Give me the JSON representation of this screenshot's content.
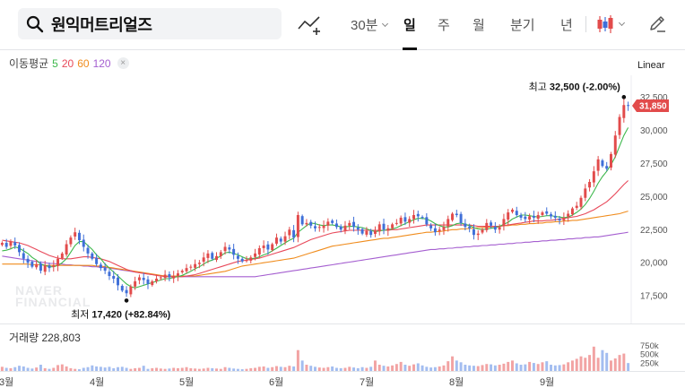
{
  "toolbar": {
    "search_text": "원익머트리얼즈",
    "periods": {
      "minute": "30분",
      "day": "일",
      "week": "주",
      "month": "월",
      "quarter": "분기",
      "year": "년"
    },
    "active_period": "일"
  },
  "legend": {
    "title": "이동평균",
    "ma5": "5",
    "ma20": "20",
    "ma60": "60",
    "ma120": "120",
    "close": "×"
  },
  "scale_label": "Linear",
  "watermark": [
    "NAVER",
    "FINANCIAL"
  ],
  "annotations": {
    "high": {
      "label": "최고",
      "value": "32,500 (-2.00%)"
    },
    "low": {
      "label": "최저",
      "value": "17,420 (+82.84%)"
    },
    "current_price": "31,850"
  },
  "volume": {
    "label": "거래량 228,803",
    "ticks": [
      "750k",
      "500k",
      "250k"
    ]
  },
  "colors": {
    "up": "#e24b4b",
    "down": "#3f6fd8",
    "ma5": "#3db84c",
    "ma20": "#e8495a",
    "ma60": "#f08c1d",
    "ma120": "#a55fd0",
    "price_tag": "#e24b4b"
  },
  "chart_data": {
    "type": "candlestick",
    "y_ticks": [
      "32,500",
      "30,000",
      "27,500",
      "25,000",
      "22,500",
      "20,000",
      "17,500"
    ],
    "ylim": [
      16500,
      33200
    ],
    "x_labels": [
      "3월",
      "4월",
      "5월",
      "6월",
      "7월",
      "8월",
      "9월"
    ],
    "x_label_days": [
      1,
      22,
      43,
      64,
      85,
      106,
      127
    ],
    "days": 147,
    "close": [
      21500,
      21200,
      21600,
      21300,
      20800,
      20300,
      20000,
      19700,
      19900,
      19400,
      19800,
      19600,
      19800,
      20300,
      20700,
      21400,
      21900,
      22300,
      21700,
      21200,
      20700,
      20300,
      19900,
      19600,
      19400,
      19000,
      18800,
      18300,
      17900,
      17700,
      18200,
      18600,
      18900,
      18700,
      18400,
      18600,
      18800,
      18900,
      19100,
      18900,
      19000,
      19200,
      19400,
      19600,
      19700,
      19900,
      20000,
      20400,
      20700,
      20300,
      20500,
      20800,
      21200,
      21000,
      20600,
      20300,
      20100,
      20200,
      20400,
      20700,
      21100,
      21300,
      21000,
      21400,
      21900,
      21600,
      22000,
      22500,
      21900,
      23600,
      22900,
      23000,
      22800,
      22600,
      22700,
      22800,
      23100,
      23000,
      22700,
      22500,
      22800,
      23000,
      22700,
      22500,
      22200,
      22400,
      22100,
      22400,
      22900,
      22500,
      22600,
      22900,
      23000,
      23400,
      23100,
      23300,
      23600,
      23500,
      23400,
      22900,
      22600,
      22300,
      22500,
      22700,
      23300,
      23700,
      23600,
      23000,
      22700,
      22600,
      22100,
      22200,
      22500,
      23000,
      22800,
      22500,
      22700,
      23300,
      23800,
      24000,
      23600,
      23400,
      23300,
      23500,
      23400,
      23600,
      23800,
      23700,
      23500,
      23400,
      23200,
      23400,
      23700,
      24100,
      24300,
      24900,
      25600,
      26100,
      26900,
      27800,
      27300,
      27100,
      28200,
      29600,
      31000,
      31900,
      31850
    ],
    "ma5": [
      20900,
      20950,
      21050,
      21200,
      21100,
      20900,
      20700,
      20400,
      20200,
      19900,
      19800,
      19700,
      19700,
      19800,
      20000,
      20300,
      20800,
      21300,
      21600,
      21600,
      21300,
      21000,
      20600,
      20300,
      19900,
      19600,
      19300,
      19000,
      18700,
      18400,
      18200,
      18100,
      18200,
      18300,
      18400,
      18500,
      18600,
      18700,
      18800,
      18800,
      18900,
      18950,
      19050,
      19200,
      19350,
      19550,
      19700,
      19900,
      20100,
      20200,
      20350,
      20500,
      20750,
      20800,
      20700,
      20600,
      20450,
      20300,
      20300,
      20350,
      20450,
      20600,
      20700,
      20900,
      21100,
      21300,
      21500,
      21700,
      21850,
      22300,
      22550,
      22800,
      23000,
      22950,
      22850,
      22800,
      22850,
      22850,
      22800,
      22700,
      22700,
      22750,
      22750,
      22700,
      22650,
      22550,
      22450,
      22350,
      22400,
      22450,
      22500,
      22550,
      22650,
      22800,
      22950,
      23100,
      23250,
      23350,
      23350,
      23300,
      23150,
      22950,
      22800,
      22700,
      22700,
      22800,
      22950,
      23000,
      22900,
      22800,
      22650,
      22550,
      22500,
      22550,
      22600,
      22650,
      22750,
      22900,
      23050,
      23300,
      23450,
      23600,
      23600,
      23550,
      23500,
      23450,
      23500,
      23550,
      23550,
      23500,
      23450,
      23400,
      23450,
      23600,
      23800,
      24050,
      24400,
      24850,
      25400,
      26000,
      26500,
      26900,
      27400,
      28000,
      28800,
      29600,
      30200
    ],
    "ma20": [
      21700,
      21650,
      21600,
      21550,
      21500,
      21400,
      21300,
      21150,
      21000,
      20850,
      20700,
      20550,
      20450,
      20350,
      20300,
      20300,
      20300,
      20350,
      20400,
      20450,
      20450,
      20400,
      20350,
      20300,
      20200,
      20100,
      19950,
      19800,
      19650,
      19500,
      19400,
      19300,
      19250,
      19200,
      19150,
      19100,
      19050,
      19000,
      18950,
      18950,
      18950,
      18950,
      18950,
      19000,
      19050,
      19100,
      19200,
      19300,
      19400,
      19500,
      19600,
      19700,
      19800,
      19900,
      20000,
      20100,
      20150,
      20200,
      20250,
      20300,
      20350,
      20450,
      20550,
      20650,
      20750,
      20850,
      20950,
      21050,
      21150,
      21300,
      21450,
      21600,
      21750,
      21850,
      21950,
      22050,
      22150,
      22250,
      22300,
      22350,
      22400,
      22450,
      22450,
      22450,
      22450,
      22450,
      22450,
      22450,
      22450,
      22450,
      22450,
      22500,
      22500,
      22550,
      22600,
      22650,
      22700,
      22750,
      22800,
      22850,
      22850,
      22850,
      22850,
      22850,
      22850,
      22850,
      22850,
      22850,
      22850,
      22850,
      22800,
      22750,
      22750,
      22750,
      22750,
      22750,
      22750,
      22800,
      22850,
      22900,
      22950,
      23000,
      23050,
      23100,
      23150,
      23150,
      23150,
      23200,
      23200,
      23250,
      23300,
      23350,
      23400,
      23450,
      23500,
      23600,
      23700,
      23850,
      24000,
      24200,
      24400,
      24600,
      24900,
      25200,
      25550,
      25900,
      26200
    ],
    "ma60": [
      19900,
      19900,
      19900,
      19900,
      19900,
      19900,
      19900,
      19850,
      19850,
      19850,
      19800,
      19800,
      19800,
      19800,
      19800,
      19800,
      19800,
      19800,
      19800,
      19800,
      19800,
      19800,
      19750,
      19750,
      19700,
      19650,
      19600,
      19550,
      19500,
      19450,
      19400,
      19350,
      19300,
      19250,
      19200,
      19150,
      19100,
      19050,
      19000,
      19000,
      19000,
      19000,
      19000,
      19000,
      19000,
      19000,
      19050,
      19100,
      19150,
      19200,
      19250,
      19300,
      19350,
      19450,
      19550,
      19650,
      19750,
      19800,
      19850,
      19900,
      19950,
      20000,
      20050,
      20100,
      20150,
      20200,
      20250,
      20300,
      20350,
      20450,
      20550,
      20650,
      20750,
      20850,
      20950,
      21050,
      21150,
      21250,
      21300,
      21350,
      21400,
      21450,
      21500,
      21550,
      21600,
      21650,
      21700,
      21750,
      21800,
      21850,
      21850,
      21900,
      21950,
      22000,
      22050,
      22100,
      22150,
      22200,
      22250,
      22300,
      22300,
      22350,
      22350,
      22400,
      22450,
      22500,
      22500,
      22550,
      22550,
      22600,
      22600,
      22650,
      22650,
      22700,
      22700,
      22750,
      22750,
      22800,
      22800,
      22850,
      22850,
      22900,
      22900,
      22950,
      22950,
      23000,
      23000,
      23050,
      23050,
      23100,
      23100,
      23150,
      23150,
      23200,
      23200,
      23250,
      23300,
      23350,
      23400,
      23450,
      23500,
      23550,
      23600,
      23650,
      23700,
      23800,
      23900
    ],
    "ma120": [
      20500,
      20450,
      20400,
      20350,
      20300,
      20250,
      20200,
      20150,
      20100,
      20050,
      20000,
      19950,
      19950,
      19900,
      19900,
      19850,
      19850,
      19800,
      19800,
      19750,
      19750,
      19700,
      19700,
      19650,
      19650,
      19600,
      19550,
      19500,
      19450,
      19400,
      19350,
      19300,
      19250,
      19200,
      19150,
      19100,
      19050,
      19000,
      19000,
      18950,
      18950,
      18950,
      18950,
      18950,
      18950,
      18950,
      18950,
      18950,
      18950,
      18950,
      18950,
      18950,
      18950,
      18950,
      18950,
      18950,
      18950,
      18950,
      18950,
      18950,
      19000,
      19050,
      19100,
      19150,
      19200,
      19250,
      19300,
      19350,
      19400,
      19450,
      19500,
      19550,
      19600,
      19650,
      19700,
      19750,
      19800,
      19850,
      19900,
      19950,
      20000,
      20050,
      20100,
      20150,
      20200,
      20250,
      20300,
      20350,
      20400,
      20450,
      20500,
      20550,
      20600,
      20650,
      20700,
      20750,
      20800,
      20850,
      20900,
      20950,
      21000,
      21000,
      21050,
      21050,
      21100,
      21100,
      21150,
      21150,
      21200,
      21200,
      21250,
      21250,
      21300,
      21300,
      21350,
      21350,
      21400,
      21400,
      21450,
      21450,
      21500,
      21500,
      21550,
      21550,
      21600,
      21600,
      21650,
      21650,
      21700,
      21700,
      21750,
      21750,
      21800,
      21800,
      21850,
      21850,
      21900,
      21900,
      21950,
      21950,
      22000,
      22050,
      22100,
      22150,
      22200,
      22250,
      22300
    ],
    "volume": [
      120,
      90,
      80,
      110,
      150,
      130,
      90,
      70,
      100,
      180,
      80,
      60,
      90,
      170,
      190,
      130,
      80,
      60,
      50,
      90,
      110,
      160,
      130,
      120,
      100,
      120,
      80,
      110,
      120,
      90,
      60,
      80,
      90,
      150,
      60,
      80,
      90,
      70,
      60,
      70,
      90,
      80,
      90,
      110,
      80,
      70,
      60,
      70,
      90,
      80,
      70,
      60,
      110,
      90,
      70,
      60,
      50,
      60,
      80,
      90,
      120,
      130,
      90,
      110,
      140,
      120,
      110,
      150,
      130,
      600,
      300,
      180,
      150,
      120,
      100,
      90,
      110,
      130,
      90,
      80,
      90,
      120,
      100,
      80,
      110,
      90,
      120,
      300,
      180,
      150,
      130,
      160,
      200,
      260,
      180,
      150,
      190,
      220,
      160,
      120,
      100,
      110,
      130,
      160,
      280,
      420,
      300,
      250,
      180,
      160,
      150,
      140,
      170,
      200,
      190,
      160,
      180,
      210,
      260,
      300,
      220,
      180,
      190,
      260,
      230,
      200,
      250,
      280,
      180,
      160,
      170,
      190,
      250,
      300,
      350,
      420,
      380,
      460,
      700,
      380,
      600,
      520,
      300,
      360,
      460,
      500,
      228
    ],
    "high": {
      "day": 145,
      "value": 32500
    },
    "low": {
      "day": 29,
      "value": 17420
    },
    "current": 31850
  }
}
